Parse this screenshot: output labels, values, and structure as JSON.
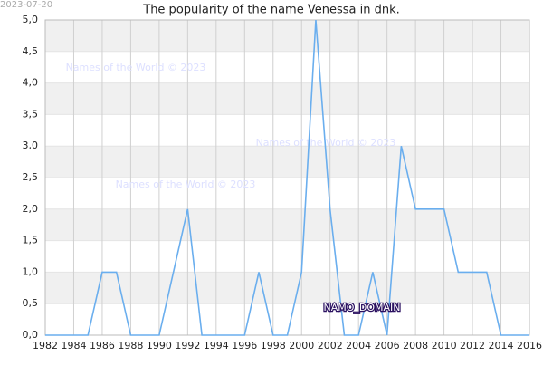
{
  "chart_data": {
    "type": "line",
    "title": "The popularity of the name Venessa in dnk.",
    "date": "2023-07-20",
    "watermarks": [
      "Names of the World © 2023",
      "Names of the World © 2023",
      "Names of the World © 2023"
    ],
    "annotation": "NAMO_DOMAIN",
    "x": [
      1982,
      1983,
      1984,
      1985,
      1986,
      1987,
      1988,
      1989,
      1990,
      1991,
      1992,
      1993,
      1994,
      1995,
      1996,
      1997,
      1998,
      1999,
      2000,
      2001,
      2002,
      2003,
      2004,
      2005,
      2006,
      2007,
      2008,
      2009,
      2010,
      2011,
      2012,
      2013,
      2014,
      2015,
      2016
    ],
    "series": [
      {
        "color": "#6aaeee",
        "values": [
          0,
          0,
          0,
          0,
          1,
          1,
          0,
          0,
          0,
          1,
          2,
          0,
          0,
          0,
          0,
          1,
          0,
          0,
          1,
          5,
          2,
          0,
          0,
          1,
          0,
          3,
          2,
          2,
          2,
          1,
          1,
          1,
          0,
          0,
          0
        ]
      }
    ],
    "xlim": [
      1982,
      2016
    ],
    "xticks": [
      1982,
      1984,
      1986,
      1988,
      1990,
      1992,
      1994,
      1996,
      1998,
      2000,
      2002,
      2004,
      2006,
      2008,
      2010,
      2012,
      2014,
      2016
    ],
    "ylim": [
      0,
      5
    ],
    "yticks": [
      {
        "value": 0,
        "label": "0,0"
      },
      {
        "value": 0.5,
        "label": "0,5"
      },
      {
        "value": 1,
        "label": "1,0"
      },
      {
        "value": 1.5,
        "label": "1,5"
      },
      {
        "value": 2,
        "label": "2,0"
      },
      {
        "value": 2.5,
        "label": "2,5"
      },
      {
        "value": 3,
        "label": "3,0"
      },
      {
        "value": 3.5,
        "label": "3,5"
      },
      {
        "value": 4,
        "label": "4,0"
      },
      {
        "value": 4.5,
        "label": "4,5"
      },
      {
        "value": 5,
        "label": "5,0"
      }
    ],
    "grid": true
  }
}
